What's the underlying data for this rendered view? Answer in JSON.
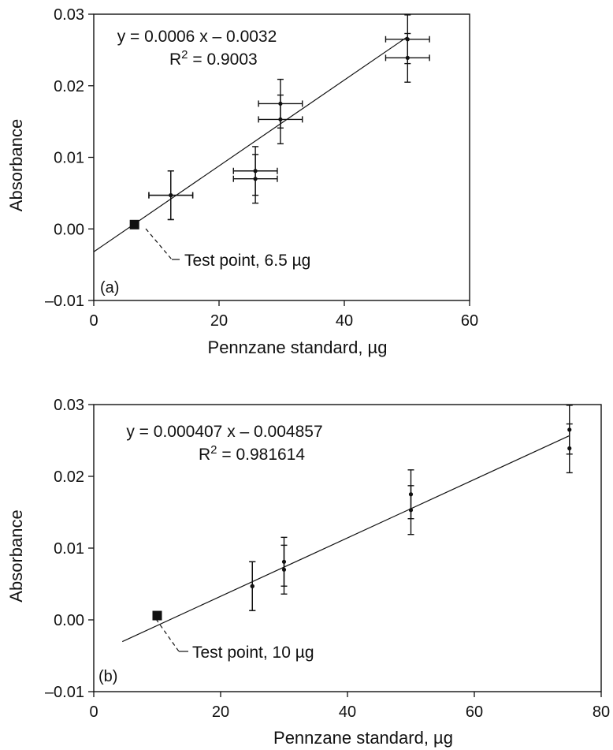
{
  "chart_data": [
    {
      "type": "scatter",
      "panel_label": "(a)",
      "xlabel": "Pennzane standard, µg",
      "ylabel": "Absorbance",
      "xlim": [
        0,
        60
      ],
      "ylim": [
        -0.01,
        0.03
      ],
      "xticks": [
        0,
        20,
        40,
        60
      ],
      "xtick_labels": [
        "0",
        "20",
        "40",
        "60"
      ],
      "yticks": [
        -0.01,
        0.0,
        0.01,
        0.02,
        0.03
      ],
      "ytick_labels": [
        "–0.01",
        "0.00",
        "0.01",
        "0.02",
        "0.03"
      ],
      "equation": "y = 0.0006 x – 0.0032",
      "r2_label": "R",
      "r2_exponent": "2",
      "r2_value": " = 0.9003",
      "fit": {
        "slope": 0.0006,
        "intercept": -0.0032,
        "x_range": [
          0,
          50
        ]
      },
      "points": [
        {
          "x": 12.3,
          "y": 0.0047,
          "xerr": 3.5,
          "yerr": 0.0034
        },
        {
          "x": 12.3,
          "y": 0.0047,
          "xerr": 3.5,
          "yerr": 0.0034
        },
        {
          "x": 25.8,
          "y": 0.0081,
          "xerr": 3.5,
          "yerr": 0.0034
        },
        {
          "x": 25.8,
          "y": 0.007,
          "xerr": 3.5,
          "yerr": 0.0034
        },
        {
          "x": 29.8,
          "y": 0.0175,
          "xerr": 3.5,
          "yerr": 0.0034
        },
        {
          "x": 29.8,
          "y": 0.0153,
          "xerr": 3.5,
          "yerr": 0.0034
        },
        {
          "x": 50.1,
          "y": 0.0265,
          "xerr": 3.5,
          "yerr": 0.0034
        },
        {
          "x": 50.1,
          "y": 0.0239,
          "xerr": 3.5,
          "yerr": 0.0034
        }
      ],
      "test_point": {
        "x": 6.5,
        "y": 0.0006,
        "label": "Test point, 6.5 µg"
      }
    },
    {
      "type": "scatter",
      "panel_label": "(b)",
      "xlabel": "Pennzane standard, µg",
      "ylabel": "Absorbance",
      "xlim": [
        0,
        80
      ],
      "ylim": [
        -0.01,
        0.03
      ],
      "xticks": [
        0,
        20,
        40,
        60,
        80
      ],
      "xtick_labels": [
        "0",
        "20",
        "40",
        "60",
        "80"
      ],
      "yticks": [
        -0.01,
        0.0,
        0.01,
        0.02,
        0.03
      ],
      "ytick_labels": [
        "–0.01",
        "0.00",
        "0.01",
        "0.02",
        "0.03"
      ],
      "equation": "y = 0.000407 x – 0.004857",
      "r2_label": "R",
      "r2_exponent": "2",
      "r2_value": " = 0.981614",
      "fit": {
        "slope": 0.000407,
        "intercept": -0.004857,
        "x_range": [
          4.5,
          75
        ]
      },
      "points": [
        {
          "x": 25,
          "y": 0.0047,
          "xerr": 0,
          "yerr": 0.0034
        },
        {
          "x": 25,
          "y": 0.0047,
          "xerr": 0,
          "yerr": 0.0034
        },
        {
          "x": 30,
          "y": 0.0081,
          "xerr": 0,
          "yerr": 0.0034
        },
        {
          "x": 30,
          "y": 0.007,
          "xerr": 0,
          "yerr": 0.0034
        },
        {
          "x": 50,
          "y": 0.0175,
          "xerr": 0,
          "yerr": 0.0034
        },
        {
          "x": 50,
          "y": 0.0153,
          "xerr": 0,
          "yerr": 0.0034
        },
        {
          "x": 75,
          "y": 0.0265,
          "xerr": 0,
          "yerr": 0.0034
        },
        {
          "x": 75,
          "y": 0.0239,
          "xerr": 0,
          "yerr": 0.0034
        }
      ],
      "test_point": {
        "x": 10,
        "y": 0.0006,
        "label": "Test point, 10 µg"
      }
    }
  ]
}
